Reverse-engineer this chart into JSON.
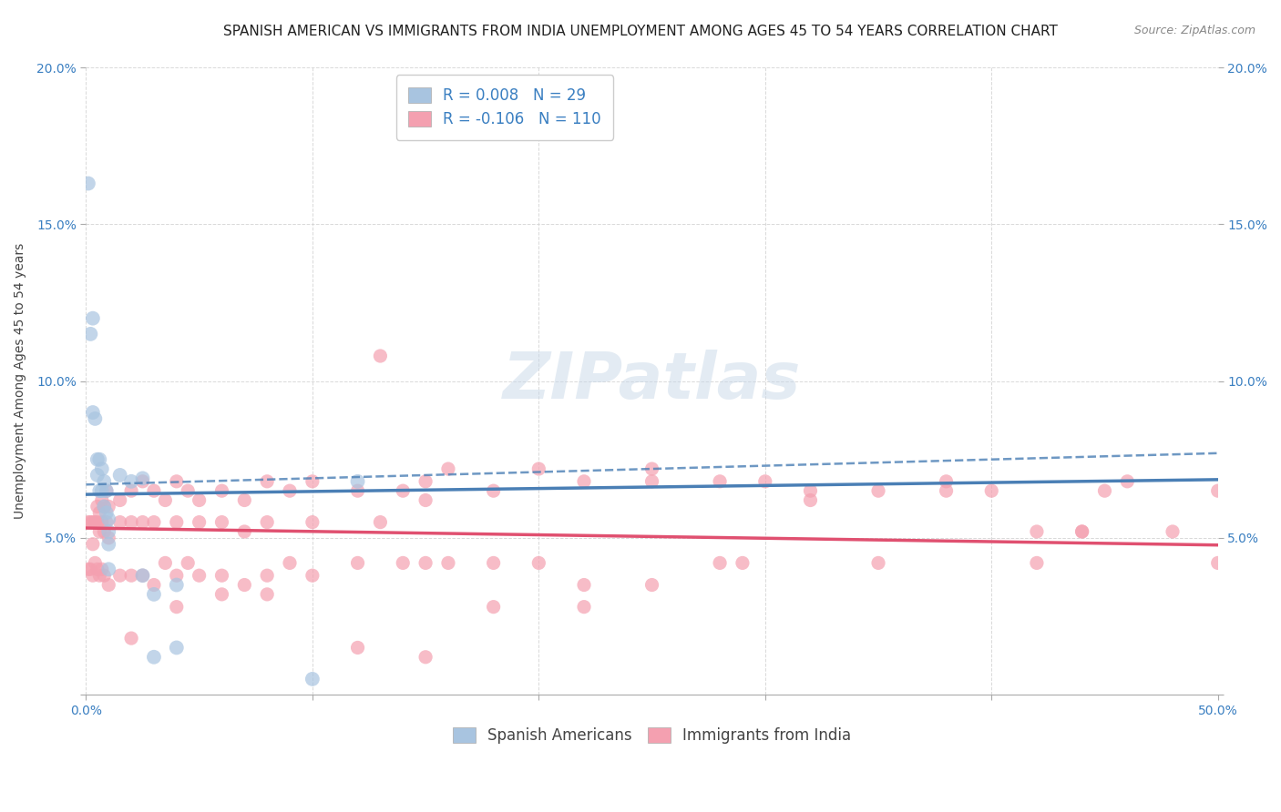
{
  "title": "SPANISH AMERICAN VS IMMIGRANTS FROM INDIA UNEMPLOYMENT AMONG AGES 45 TO 54 YEARS CORRELATION CHART",
  "source": "Source: ZipAtlas.com",
  "ylabel": "Unemployment Among Ages 45 to 54 years",
  "xlabel": "",
  "xlim": [
    0,
    0.5
  ],
  "ylim": [
    0,
    0.2
  ],
  "xticks": [
    0.0,
    0.1,
    0.2,
    0.3,
    0.4,
    0.5
  ],
  "xticklabels": [
    "0.0%",
    "",
    "",
    "",
    "",
    "50.0%"
  ],
  "yticks": [
    0.0,
    0.05,
    0.1,
    0.15,
    0.2
  ],
  "yticklabels_left": [
    "",
    "5.0%",
    "10.0%",
    "15.0%",
    "20.0%"
  ],
  "yticklabels_right": [
    "",
    "5.0%",
    "10.0%",
    "15.0%",
    "20.0%"
  ],
  "blue_R": 0.008,
  "blue_N": 29,
  "pink_R": -0.106,
  "pink_N": 110,
  "blue_color": "#a8c4e0",
  "pink_color": "#f4a0b0",
  "blue_line_color": "#4a7fb5",
  "pink_line_color": "#e05070",
  "blue_scatter": {
    "x": [
      0.001,
      0.002,
      0.003,
      0.003,
      0.004,
      0.005,
      0.005,
      0.006,
      0.006,
      0.007,
      0.007,
      0.008,
      0.008,
      0.009,
      0.009,
      0.01,
      0.01,
      0.01,
      0.01,
      0.015,
      0.02,
      0.025,
      0.025,
      0.03,
      0.03,
      0.04,
      0.04,
      0.1,
      0.12
    ],
    "y": [
      0.163,
      0.115,
      0.12,
      0.09,
      0.088,
      0.075,
      0.07,
      0.075,
      0.065,
      0.072,
      0.065,
      0.068,
      0.06,
      0.065,
      0.058,
      0.056,
      0.052,
      0.048,
      0.04,
      0.07,
      0.068,
      0.069,
      0.038,
      0.032,
      0.012,
      0.035,
      0.015,
      0.005,
      0.068
    ]
  },
  "pink_scatter": {
    "x": [
      0.001,
      0.001,
      0.002,
      0.002,
      0.003,
      0.003,
      0.003,
      0.004,
      0.004,
      0.005,
      0.005,
      0.005,
      0.006,
      0.006,
      0.006,
      0.007,
      0.007,
      0.007,
      0.008,
      0.008,
      0.008,
      0.009,
      0.009,
      0.01,
      0.01,
      0.01,
      0.015,
      0.015,
      0.015,
      0.02,
      0.02,
      0.02,
      0.025,
      0.025,
      0.025,
      0.03,
      0.03,
      0.03,
      0.035,
      0.035,
      0.04,
      0.04,
      0.04,
      0.045,
      0.045,
      0.05,
      0.05,
      0.05,
      0.06,
      0.06,
      0.06,
      0.07,
      0.07,
      0.07,
      0.08,
      0.08,
      0.08,
      0.09,
      0.09,
      0.1,
      0.1,
      0.1,
      0.12,
      0.12,
      0.13,
      0.13,
      0.14,
      0.14,
      0.15,
      0.15,
      0.16,
      0.16,
      0.18,
      0.18,
      0.2,
      0.2,
      0.22,
      0.22,
      0.25,
      0.25,
      0.28,
      0.3,
      0.32,
      0.35,
      0.38,
      0.4,
      0.42,
      0.44,
      0.46,
      0.48,
      0.5,
      0.5,
      0.35,
      0.25,
      0.15,
      0.08,
      0.06,
      0.04,
      0.02,
      0.29,
      0.38,
      0.15,
      0.12,
      0.22,
      0.45,
      0.44,
      0.28,
      0.18,
      0.32,
      0.42
    ],
    "y": [
      0.055,
      0.04,
      0.055,
      0.04,
      0.055,
      0.048,
      0.038,
      0.055,
      0.042,
      0.06,
      0.055,
      0.04,
      0.058,
      0.052,
      0.038,
      0.062,
      0.055,
      0.04,
      0.06,
      0.052,
      0.038,
      0.065,
      0.055,
      0.06,
      0.05,
      0.035,
      0.062,
      0.055,
      0.038,
      0.065,
      0.055,
      0.038,
      0.068,
      0.055,
      0.038,
      0.065,
      0.055,
      0.035,
      0.062,
      0.042,
      0.068,
      0.055,
      0.038,
      0.065,
      0.042,
      0.062,
      0.055,
      0.038,
      0.065,
      0.055,
      0.038,
      0.062,
      0.052,
      0.035,
      0.068,
      0.055,
      0.038,
      0.065,
      0.042,
      0.068,
      0.055,
      0.038,
      0.065,
      0.042,
      0.108,
      0.055,
      0.065,
      0.042,
      0.068,
      0.042,
      0.072,
      0.042,
      0.065,
      0.042,
      0.072,
      0.042,
      0.068,
      0.035,
      0.072,
      0.035,
      0.068,
      0.068,
      0.065,
      0.042,
      0.068,
      0.065,
      0.042,
      0.052,
      0.068,
      0.052,
      0.065,
      0.042,
      0.065,
      0.068,
      0.062,
      0.032,
      0.032,
      0.028,
      0.018,
      0.042,
      0.065,
      0.012,
      0.015,
      0.028,
      0.065,
      0.052,
      0.042,
      0.028,
      0.062,
      0.052
    ]
  },
  "watermark": "ZIPatlas",
  "background_color": "#ffffff",
  "grid_color": "#d0d0d0",
  "title_fontsize": 11,
  "axis_label_fontsize": 10,
  "tick_fontsize": 10,
  "legend_fontsize": 12
}
